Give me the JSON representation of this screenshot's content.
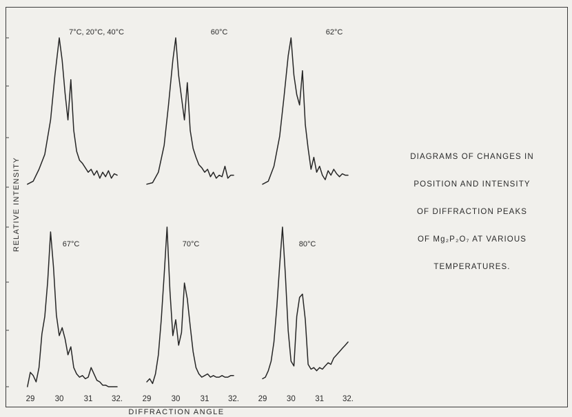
{
  "caption": {
    "lines": [
      "DIAGRAMS OF CHANGES IN",
      "POSITION AND INTENSITY",
      "OF DIFFRACTION PEAKS",
      "OF Mg₂P₂O₇ AT VARIOUS",
      "TEMPERATURES."
    ]
  },
  "chart_data": {
    "type": "line",
    "xlabel": "DIFFRACTION ANGLE",
    "ylabel": "RELATIVE INTENSITY",
    "xlim": [
      29,
      32
    ],
    "ylim": [
      0,
      1
    ],
    "x_tick_labels": [
      "29",
      "30",
      "31",
      "32."
    ],
    "panels": [
      {
        "label": "7°C, 20°C, 40°C",
        "x": [
          28.9,
          29.1,
          29.3,
          29.5,
          29.7,
          29.85,
          30.0,
          30.1,
          30.2,
          30.3,
          30.4,
          30.5,
          30.6,
          30.7,
          30.8,
          30.9,
          31.0,
          31.1,
          31.2,
          31.3,
          31.4,
          31.5,
          31.6,
          31.7,
          31.8,
          31.9,
          32.0
        ],
        "y": [
          0.02,
          0.04,
          0.12,
          0.22,
          0.45,
          0.75,
          1.0,
          0.85,
          0.63,
          0.45,
          0.72,
          0.38,
          0.24,
          0.18,
          0.16,
          0.13,
          0.1,
          0.12,
          0.08,
          0.11,
          0.06,
          0.1,
          0.07,
          0.11,
          0.06,
          0.09,
          0.08
        ]
      },
      {
        "label": "60°C",
        "x": [
          29.0,
          29.2,
          29.4,
          29.6,
          29.75,
          29.9,
          30.0,
          30.1,
          30.2,
          30.3,
          30.4,
          30.5,
          30.6,
          30.7,
          30.8,
          30.9,
          31.0,
          31.1,
          31.2,
          31.3,
          31.4,
          31.5,
          31.6,
          31.7,
          31.8,
          31.9,
          32.0
        ],
        "y": [
          0.02,
          0.03,
          0.1,
          0.28,
          0.55,
          0.85,
          1.0,
          0.75,
          0.6,
          0.45,
          0.7,
          0.38,
          0.26,
          0.2,
          0.15,
          0.13,
          0.1,
          0.12,
          0.07,
          0.1,
          0.06,
          0.08,
          0.07,
          0.14,
          0.06,
          0.08,
          0.08
        ]
      },
      {
        "label": "62°C",
        "x": [
          29.0,
          29.2,
          29.4,
          29.6,
          29.75,
          29.9,
          30.0,
          30.1,
          30.2,
          30.3,
          30.4,
          30.5,
          30.6,
          30.7,
          30.8,
          30.9,
          31.0,
          31.1,
          31.2,
          31.3,
          31.4,
          31.5,
          31.6,
          31.7,
          31.8,
          31.9,
          32.0
        ],
        "y": [
          0.02,
          0.04,
          0.14,
          0.34,
          0.6,
          0.88,
          1.0,
          0.75,
          0.62,
          0.55,
          0.78,
          0.42,
          0.26,
          0.12,
          0.2,
          0.1,
          0.14,
          0.08,
          0.05,
          0.11,
          0.08,
          0.12,
          0.09,
          0.07,
          0.09,
          0.08,
          0.08
        ]
      },
      {
        "label": "67°C",
        "x": [
          28.9,
          29.0,
          29.1,
          29.2,
          29.3,
          29.4,
          29.5,
          29.6,
          29.7,
          29.8,
          29.9,
          30.0,
          30.1,
          30.2,
          30.3,
          30.4,
          30.5,
          30.6,
          30.7,
          30.8,
          30.9,
          31.0,
          31.1,
          31.2,
          31.3,
          31.4,
          31.5,
          31.6,
          31.7,
          31.8,
          31.9,
          32.0
        ],
        "y": [
          0.0,
          0.09,
          0.07,
          0.03,
          0.12,
          0.33,
          0.44,
          0.66,
          0.97,
          0.75,
          0.45,
          0.32,
          0.37,
          0.3,
          0.2,
          0.25,
          0.12,
          0.08,
          0.06,
          0.07,
          0.05,
          0.06,
          0.12,
          0.08,
          0.04,
          0.03,
          0.01,
          0.01,
          0.0,
          0.0,
          0.0,
          0.0
        ]
      },
      {
        "label": "70°C",
        "x": [
          29.0,
          29.1,
          29.2,
          29.3,
          29.4,
          29.5,
          29.6,
          29.7,
          29.8,
          29.9,
          30.0,
          30.1,
          30.2,
          30.3,
          30.4,
          30.5,
          30.6,
          30.7,
          30.8,
          30.9,
          31.0,
          31.1,
          31.2,
          31.3,
          31.4,
          31.5,
          31.6,
          31.7,
          31.8,
          31.9,
          32.0
        ],
        "y": [
          0.03,
          0.05,
          0.02,
          0.08,
          0.2,
          0.42,
          0.7,
          1.0,
          0.6,
          0.32,
          0.42,
          0.26,
          0.34,
          0.65,
          0.55,
          0.38,
          0.22,
          0.12,
          0.08,
          0.06,
          0.07,
          0.08,
          0.06,
          0.07,
          0.06,
          0.06,
          0.07,
          0.06,
          0.06,
          0.07,
          0.07
        ]
      },
      {
        "label": "80°C",
        "x": [
          29.0,
          29.1,
          29.2,
          29.3,
          29.4,
          29.5,
          29.6,
          29.7,
          29.8,
          29.9,
          30.0,
          30.1,
          30.2,
          30.3,
          30.4,
          30.5,
          30.6,
          30.7,
          30.8,
          30.9,
          31.0,
          31.1,
          31.2,
          31.3,
          31.4,
          31.5,
          31.6,
          31.7,
          31.8,
          31.9,
          32.0
        ],
        "y": [
          0.05,
          0.06,
          0.1,
          0.16,
          0.28,
          0.5,
          0.76,
          1.0,
          0.7,
          0.35,
          0.16,
          0.13,
          0.44,
          0.56,
          0.58,
          0.42,
          0.14,
          0.11,
          0.12,
          0.1,
          0.12,
          0.11,
          0.13,
          0.15,
          0.14,
          0.18,
          0.2,
          0.22,
          0.24,
          0.26,
          0.28
        ]
      }
    ]
  }
}
